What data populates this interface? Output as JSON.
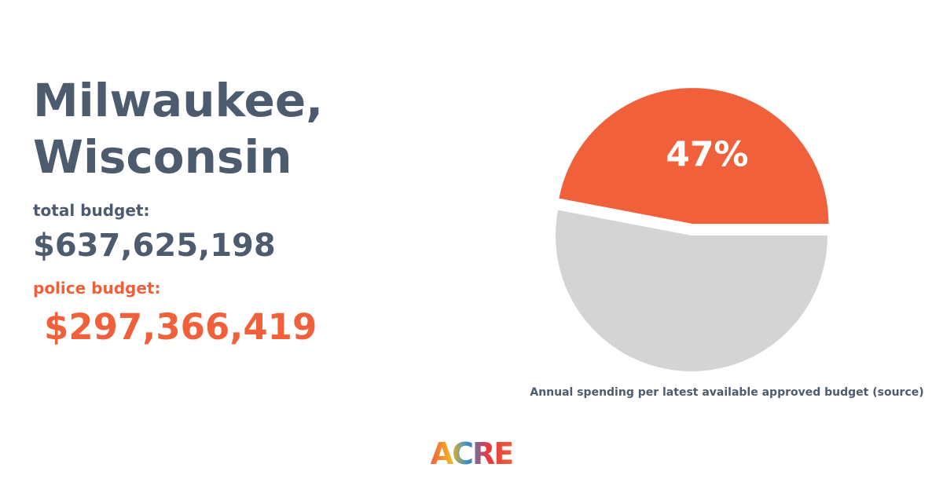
{
  "header": {
    "title_lines": [
      "Milwaukee,",
      "Wisconsin"
    ],
    "total_label": "total budget:",
    "total_value": "$637,625,198",
    "police_label": "police budget:",
    "police_value": "$297,366,419"
  },
  "chart_data": {
    "type": "pie",
    "values": [
      47,
      53
    ],
    "value_labels": [
      "47%",
      null
    ],
    "colors": [
      "#f0603b",
      "#d4d4d4"
    ],
    "exploded": [
      true,
      false
    ],
    "caption": "Annual spending per latest available approved budget (source)"
  },
  "logo": "ACRE"
}
